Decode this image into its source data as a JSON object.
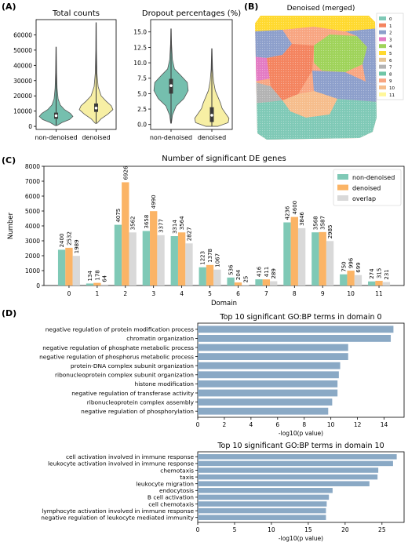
{
  "panel_labels": {
    "A": "(A)",
    "B": "(B)",
    "C": "(C)",
    "D": "(D)"
  },
  "colors": {
    "non_denoised": "#7fc9b6",
    "denoised": "#fbb466",
    "overlap": "#d9d9d9",
    "violin_non_denoised": "#75bfae",
    "violin_denoised": "#f7efa4",
    "go_bar": "#8aa9c5"
  },
  "chart_data": [
    {
      "id": "total_counts",
      "type": "violin",
      "title": "Total counts",
      "categories": [
        "non-denoised",
        "denoised"
      ],
      "ylim": [
        -2000,
        70000
      ],
      "yticks": [
        0,
        10000,
        20000,
        30000,
        40000,
        50000,
        60000
      ],
      "ytick_labels": [
        "0",
        "10000",
        "20000",
        "30000",
        "40000",
        "50000",
        "60000"
      ],
      "series": [
        {
          "category": "non-denoised",
          "min": 500,
          "q1": 5000,
          "median": 7000,
          "q3": 9000,
          "max": 52000,
          "profile": [
            [
              500,
              0.05
            ],
            [
              2500,
              0.35
            ],
            [
              4500,
              0.8
            ],
            [
              6500,
              1.0
            ],
            [
              8500,
              0.85
            ],
            [
              11000,
              0.5
            ],
            [
              14000,
              0.25
            ],
            [
              18000,
              0.12
            ],
            [
              25000,
              0.06
            ],
            [
              35000,
              0.03
            ],
            [
              52000,
              0.01
            ]
          ]
        },
        {
          "category": "denoised",
          "min": 2000,
          "q1": 9500,
          "median": 12000,
          "q3": 15000,
          "max": 68000,
          "profile": [
            [
              2000,
              0.05
            ],
            [
              5000,
              0.3
            ],
            [
              8000,
              0.7
            ],
            [
              11000,
              1.0
            ],
            [
              13500,
              0.9
            ],
            [
              16500,
              0.6
            ],
            [
              20000,
              0.3
            ],
            [
              26000,
              0.12
            ],
            [
              35000,
              0.05
            ],
            [
              50000,
              0.02
            ],
            [
              68000,
              0.01
            ]
          ]
        }
      ]
    },
    {
      "id": "dropout",
      "type": "violin",
      "title": "Dropout percentages (%)",
      "categories": [
        "non-denoised",
        "denoised"
      ],
      "ylim": [
        -0.8,
        17
      ],
      "yticks": [
        0.0,
        2.5,
        5.0,
        7.5,
        10.0,
        12.5,
        15.0
      ],
      "ytick_labels": [
        "0.0",
        "2.5",
        "5.0",
        "7.5",
        "10.0",
        "12.5",
        "15.0"
      ],
      "series": [
        {
          "category": "non-denoised",
          "min": 0.2,
          "q1": 5.0,
          "median": 6.3,
          "q3": 7.4,
          "max": 15.5,
          "profile": [
            [
              0.2,
              0.02
            ],
            [
              1.5,
              0.08
            ],
            [
              3,
              0.3
            ],
            [
              4.2,
              0.75
            ],
            [
              5.5,
              1.0
            ],
            [
              6.8,
              0.95
            ],
            [
              8,
              0.55
            ],
            [
              9,
              0.2
            ],
            [
              10.5,
              0.08
            ],
            [
              13,
              0.03
            ],
            [
              15.5,
              0.01
            ]
          ]
        },
        {
          "category": "denoised",
          "min": -0.3,
          "q1": 0.4,
          "median": 1.5,
          "q3": 2.8,
          "max": 12.3,
          "profile": [
            [
              -0.3,
              0.35
            ],
            [
              0.3,
              0.95
            ],
            [
              1,
              1.0
            ],
            [
              1.8,
              0.8
            ],
            [
              2.6,
              0.6
            ],
            [
              3.5,
              0.5
            ],
            [
              4.5,
              0.35
            ],
            [
              5.5,
              0.2
            ],
            [
              7,
              0.1
            ],
            [
              9,
              0.04
            ],
            [
              12.3,
              0.01
            ]
          ]
        }
      ]
    },
    {
      "id": "de_genes",
      "type": "bar",
      "title": "Number of significant DE genes",
      "xlabel": "Domain",
      "ylabel": "Number",
      "ylim": [
        0,
        8000
      ],
      "yticks": [
        0,
        1000,
        2000,
        3000,
        4000,
        5000,
        6000,
        7000,
        8000
      ],
      "categories": [
        "0",
        "1",
        "2",
        "3",
        "4",
        "5",
        "6",
        "7",
        "8",
        "9",
        "10",
        "11"
      ],
      "series": [
        {
          "name": "non-denoised",
          "color_key": "non_denoised",
          "values": [
            2400,
            134,
            4075,
            3658,
            3314,
            1223,
            536,
            416,
            4236,
            3568,
            750,
            274
          ]
        },
        {
          "name": "denoised",
          "color_key": "denoised",
          "values": [
            2532,
            178,
            6926,
            4990,
            3564,
            1378,
            204,
            411,
            4600,
            3587,
            996,
            315
          ]
        },
        {
          "name": "overlap",
          "color_key": "overlap",
          "values": [
            1989,
            64,
            3562,
            3377,
            2827,
            1067,
            25,
            289,
            3846,
            2985,
            699,
            231
          ]
        }
      ],
      "legend": "top-right"
    },
    {
      "id": "go_domain0",
      "type": "hbar",
      "title": "Top 10 significant GO:BP terms in domain 0",
      "xlabel": "-log10(p value)",
      "xlim": [
        0,
        15.5
      ],
      "xticks": [
        0,
        2,
        4,
        6,
        8,
        10,
        12,
        14
      ],
      "categories": [
        "negative regulation of protein modification process",
        "chromatin organization",
        "negative regulation of phosphate metabolic process",
        "negative regulation of phosphorus metabolic process",
        "protein-DNA complex subunit organization",
        "ribonucleoprotein complex subunit organization",
        "histone modification",
        "negative regulation of transferase activity",
        "ribonucleoprotein complex assembly",
        "negative regulation of phosphorylation"
      ],
      "values": [
        14.7,
        14.5,
        11.3,
        11.3,
        10.7,
        10.6,
        10.5,
        10.5,
        10.1,
        9.8
      ]
    },
    {
      "id": "go_domain10",
      "type": "hbar",
      "title": "Top 10 significant GO:BP terms in domain 10",
      "xlabel": "-log10(p value)",
      "xlim": [
        0,
        28
      ],
      "xticks": [
        0,
        5,
        10,
        15,
        20,
        25
      ],
      "categories": [
        "cell activation involved in immune response",
        "leukocyte activation involved in immune response",
        "chemotaxis",
        "taxis",
        "leukocyte migration",
        "endocytosis",
        "B cell activation",
        "cell chemotaxis",
        "lymphocyte activation involved in immune response",
        "negative regulation of leukocyte mediated immunity"
      ],
      "values": [
        27.0,
        26.5,
        24.5,
        24.4,
        23.3,
        18.3,
        17.8,
        17.5,
        17.4,
        17.4
      ]
    }
  ],
  "spatial": {
    "title": "Denoised (merged)",
    "legend": [
      {
        "label": "0",
        "color": "#7fc9b6"
      },
      {
        "label": "1",
        "color": "#f4845f"
      },
      {
        "label": "2",
        "color": "#8d9fcb"
      },
      {
        "label": "3",
        "color": "#e37bc4"
      },
      {
        "label": "4",
        "color": "#9fd35a"
      },
      {
        "label": "5",
        "color": "#ffd92f"
      },
      {
        "label": "6",
        "color": "#e5c494"
      },
      {
        "label": "7",
        "color": "#b3b3b3"
      },
      {
        "label": "8",
        "color": "#6ec5a6"
      },
      {
        "label": "9",
        "color": "#f8a581"
      },
      {
        "label": "10",
        "color": "#f6bd8c"
      },
      {
        "label": "11",
        "color": "#fff799"
      }
    ]
  }
}
